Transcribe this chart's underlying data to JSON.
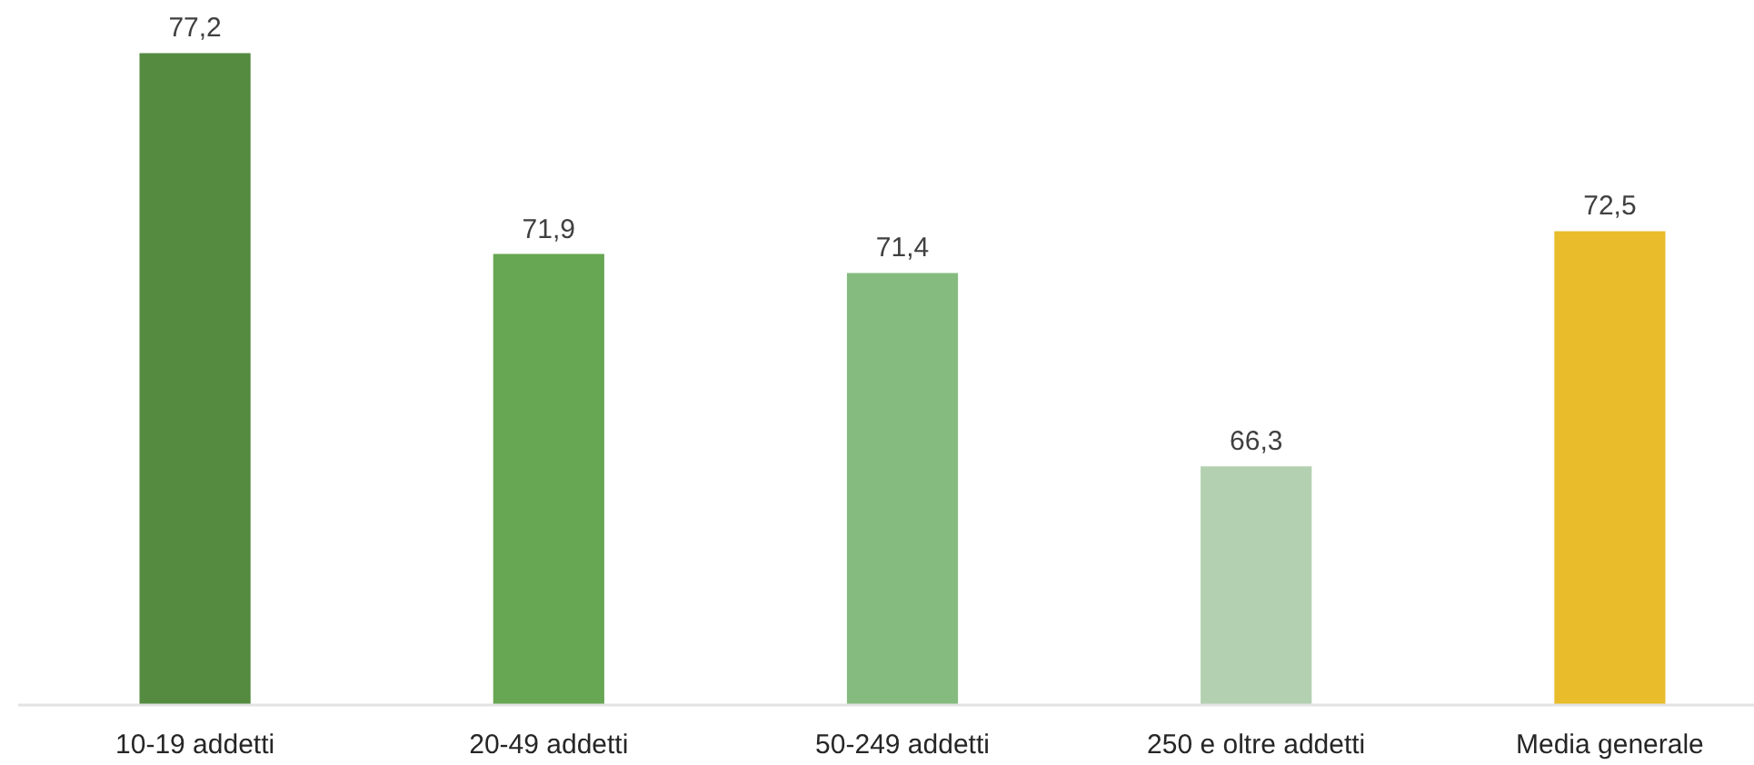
{
  "chart_data": {
    "type": "bar",
    "categories": [
      "10-19 addetti",
      "20-49 addetti",
      "50-249 addetti",
      "250 e oltre addetti",
      "Media generale"
    ],
    "values": [
      77.2,
      71.9,
      71.4,
      66.3,
      72.5
    ],
    "value_labels": [
      "77,2",
      "71,9",
      "71,4",
      "66,3",
      "72,5"
    ],
    "colors": [
      "#558b41",
      "#67a652",
      "#86bb80",
      "#b3d1b1",
      "#e8bc2b"
    ],
    "ylim": [
      60,
      78.6
    ],
    "tick_labels": "x"
  }
}
